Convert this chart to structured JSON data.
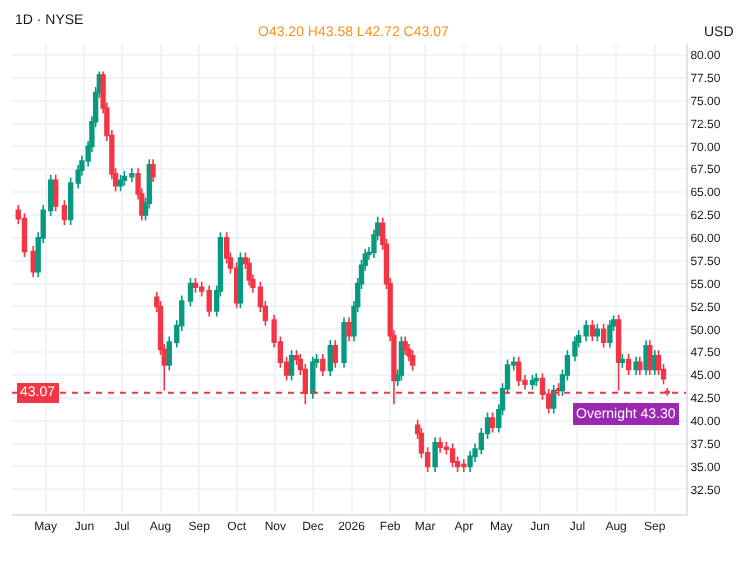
{
  "chart_data": {
    "type": "candlestick",
    "title": "1D · NYSE",
    "ylabel": "USD",
    "annotations": [
      "O43.20 H43.58 L42.72 C43.07",
      {
        "text": "Overnight 43.30",
        "x": "2026-09-11",
        "y": 43.3
      }
    ],
    "colors": [
      "#f23645",
      "#f23645",
      "#f23645",
      "#089981",
      "#089981",
      "#089981",
      "#f23645",
      "#f23645",
      "#089981",
      "#089981",
      "#089981",
      "#089981",
      "#089981",
      "#089981",
      "#089981",
      "#f23645",
      "#f23645",
      "#f23645",
      "#f23645",
      "#089981",
      "#089981",
      "#089981",
      "#f23645",
      "#f23645",
      "#089981",
      "#089981",
      "#f23645",
      "#f23645",
      "#f23645",
      "#f23645",
      "#089981",
      "#089981",
      "#089981",
      "#089981",
      "#f23645",
      "#f23645",
      "#f23645",
      "#089981",
      "#089981",
      "#f23645",
      "#f23645",
      "#f23645",
      "#089981",
      "#f23645",
      "#f23645",
      "#f23645",
      "#f23645",
      "#f23645",
      "#f23645",
      "#f23645",
      "#f23645",
      "#089981",
      "#f23645",
      "#f23645",
      "#f23645",
      "#089981",
      "#089981",
      "#f23645",
      "#089981",
      "#f23645",
      "#089981",
      "#f23645",
      "#089981",
      "#089981",
      "#089981",
      "#089981",
      "#089981",
      "#089981",
      "#089981",
      "#f23645",
      "#f23645",
      "#f23645",
      "#f23645",
      "#089981",
      "#089981",
      "#f23645",
      "#f23645",
      "#f23645",
      "#f23645",
      "#f23645",
      "#f23645",
      "#089981",
      "#f23645",
      "#f23645",
      "#f23645",
      "#f23645",
      "#f23645",
      "#089981",
      "#089981",
      "#089981",
      "#089981",
      "#f23645",
      "#089981",
      "#089981",
      "#089981",
      "#089981",
      "#f23645",
      "#f23645",
      "#089981",
      "#089981",
      "#f23645",
      "#f23645",
      "#089981",
      "#f23645",
      "#089981",
      "#089981",
      "#089981",
      "#089981",
      "#089981",
      "#f23645",
      "#089981",
      "#f23645",
      "#089981",
      "#089981",
      "#f23645",
      "#089981",
      "#f23645",
      "#089981",
      "#f23645",
      "#089981",
      "#f23645",
      "#089981",
      "#f23645",
      "#f23645",
      "#f23645"
    ],
    "x": [
      "2025-04-09",
      "2025-04-14",
      "2025-04-21",
      "2025-04-25",
      "2025-04-29",
      "2025-05-05",
      "2025-05-09",
      "2025-05-16",
      "2025-05-21",
      "2025-05-27",
      "2025-05-30",
      "2025-06-04",
      "2025-06-07",
      "2025-06-10",
      "2025-06-13",
      "2025-06-16",
      "2025-06-19",
      "2025-06-23",
      "2025-06-26",
      "2025-06-30",
      "2025-07-03",
      "2025-07-09",
      "2025-07-14",
      "2025-07-17",
      "2025-07-20",
      "2025-07-23",
      "2025-07-26",
      "2025-07-29",
      "2025-08-01",
      "2025-08-04",
      "2025-08-08",
      "2025-08-14",
      "2025-08-18",
      "2025-08-25",
      "2025-08-29",
      "2025-09-03",
      "2025-09-09",
      "2025-09-15",
      "2025-09-18",
      "2025-09-23",
      "2025-09-26",
      "2025-10-01",
      "2025-10-04",
      "2025-10-08",
      "2025-10-11",
      "2025-10-14",
      "2025-10-20",
      "2025-10-24",
      "2025-10-31",
      "2025-11-05",
      "2025-11-10",
      "2025-11-14",
      "2025-11-18",
      "2025-11-21",
      "2025-11-25",
      "2025-12-01",
      "2025-12-04",
      "2025-12-09",
      "2025-12-15",
      "2025-12-19",
      "2025-12-26",
      "2025-12-30",
      "2026-01-03",
      "2026-01-06",
      "2026-01-09",
      "2026-01-12",
      "2026-01-15",
      "2026-01-19",
      "2026-01-22",
      "2026-01-26",
      "2026-01-29",
      "2026-02-01",
      "2026-02-04",
      "2026-02-07",
      "2026-02-10",
      "2026-02-13",
      "2026-02-16",
      "2026-02-19",
      "2026-02-23",
      "2026-02-26",
      "2026-03-03",
      "2026-03-09",
      "2026-03-13",
      "2026-03-18",
      "2026-03-23",
      "2026-03-27",
      "2026-04-01",
      "2026-04-06",
      "2026-04-10",
      "2026-04-15",
      "2026-04-20",
      "2026-04-24",
      "2026-04-29",
      "2026-05-02",
      "2026-05-06",
      "2026-05-11",
      "2026-05-15",
      "2026-05-20",
      "2026-05-26",
      "2026-05-29",
      "2026-06-03",
      "2026-06-08",
      "2026-06-12",
      "2026-06-16",
      "2026-06-19",
      "2026-06-23",
      "2026-06-29",
      "2026-07-02",
      "2026-07-08",
      "2026-07-13",
      "2026-07-17",
      "2026-07-22",
      "2026-07-27",
      "2026-07-30",
      "2026-08-03",
      "2026-08-06",
      "2026-08-11",
      "2026-08-17",
      "2026-08-20",
      "2026-08-25",
      "2026-08-28",
      "2026-09-01",
      "2026-09-04",
      "2026-09-08",
      "2026-09-11"
    ],
    "ohlc": [
      [
        63,
        63.6,
        61.5,
        62.1
      ],
      [
        62.1,
        62.7,
        57.9,
        58.5
      ],
      [
        58.5,
        59.1,
        55.7,
        56.3
      ],
      [
        56.3,
        60.6,
        55.7,
        60
      ],
      [
        60,
        63.6,
        59.4,
        63
      ],
      [
        63,
        66.9,
        62.4,
        66.3
      ],
      [
        66.3,
        66.9,
        62.9,
        63.5
      ],
      [
        63.5,
        64.1,
        61.4,
        62
      ],
      [
        62,
        66.6,
        61.4,
        66
      ],
      [
        66,
        68,
        65.4,
        67.4
      ],
      [
        67.4,
        69,
        66.8,
        68.4
      ],
      [
        68.4,
        70.6,
        67.8,
        70
      ],
      [
        70,
        73.3,
        69.4,
        72.7
      ],
      [
        72.7,
        76.5,
        72.1,
        75.9
      ],
      [
        75.9,
        78.2,
        75.3,
        77.8
      ],
      [
        77.8,
        78.2,
        73.6,
        74.2
      ],
      [
        74.2,
        74.8,
        70.6,
        71.2
      ],
      [
        71.2,
        71.8,
        66.4,
        67
      ],
      [
        67,
        67.6,
        65.1,
        65.7
      ],
      [
        65.7,
        66.9,
        65.1,
        66.3
      ],
      [
        66.3,
        67.3,
        65.7,
        66.7
      ],
      [
        66.7,
        67.6,
        66.1,
        67
      ],
      [
        67,
        67.6,
        64.2,
        64.8
      ],
      [
        64.8,
        65.4,
        61.9,
        62.5
      ],
      [
        62.5,
        64.4,
        61.9,
        63.8
      ],
      [
        63.8,
        68.6,
        63.2,
        68
      ],
      [
        68,
        68.6,
        66.1,
        66.7
      ],
      [
        53.5,
        54.1,
        51.9,
        52.5
      ],
      [
        52.5,
        53.1,
        47.2,
        47.8
      ],
      [
        47.8,
        48.4,
        43.3,
        46.1
      ],
      [
        46.1,
        49.2,
        45.5,
        48.6
      ],
      [
        48.6,
        51,
        48,
        50.4
      ],
      [
        50.4,
        53.7,
        49.8,
        53.1
      ],
      [
        53.1,
        55.6,
        52.5,
        55
      ],
      [
        55,
        55.6,
        54,
        54.6
      ],
      [
        54.6,
        55.2,
        53.6,
        54.2
      ],
      [
        54.2,
        54.8,
        51.4,
        52
      ],
      [
        52,
        54.8,
        51.4,
        54.2
      ],
      [
        54.2,
        60.6,
        53.6,
        60
      ],
      [
        60,
        60.6,
        57.2,
        57.8
      ],
      [
        57.8,
        58.4,
        56.1,
        56.7
      ],
      [
        56.7,
        57.3,
        52.3,
        52.9
      ],
      [
        52.9,
        58.4,
        52.3,
        57.8
      ],
      [
        57.8,
        58.4,
        56.6,
        57.2
      ],
      [
        57.2,
        57.8,
        54.8,
        55.4
      ],
      [
        55.4,
        56,
        54,
        54.6
      ],
      [
        54.6,
        55.2,
        51.9,
        52.5
      ],
      [
        52.5,
        53.1,
        50.4,
        51
      ],
      [
        51,
        51.6,
        48,
        48.6
      ],
      [
        48.6,
        49.2,
        45.8,
        46.4
      ],
      [
        46.4,
        47,
        44.4,
        45
      ],
      [
        45,
        47.7,
        44.4,
        47.1
      ],
      [
        47.1,
        47.7,
        46.1,
        46.7
      ],
      [
        46.7,
        47.3,
        45,
        45.6
      ],
      [
        45.6,
        46.2,
        41.8,
        43
      ],
      [
        43,
        47,
        42.4,
        46.4
      ],
      [
        46.4,
        47.3,
        45.8,
        46.7
      ],
      [
        46.7,
        47.3,
        44.9,
        45.5
      ],
      [
        45.5,
        48.8,
        44.9,
        48.2
      ],
      [
        48.2,
        48.8,
        45.8,
        46.4
      ],
      [
        46.4,
        51.3,
        45.8,
        50.7
      ],
      [
        50.7,
        51.3,
        48.7,
        49.3
      ],
      [
        49.3,
        53.1,
        48.7,
        52.5
      ],
      [
        52.5,
        55.6,
        51.9,
        55
      ],
      [
        55,
        57.6,
        54.4,
        57
      ],
      [
        57,
        58.8,
        56.4,
        58.2
      ],
      [
        58.2,
        59,
        57.6,
        58.4
      ],
      [
        58.4,
        60.9,
        57.8,
        60.3
      ],
      [
        60.3,
        62.3,
        59.7,
        61.6
      ],
      [
        61.6,
        62.2,
        58.7,
        59.3
      ],
      [
        59.3,
        59.9,
        54.4,
        55
      ],
      [
        55,
        55.6,
        48.7,
        49.3
      ],
      [
        49.3,
        49.9,
        41.8,
        44.4
      ],
      [
        44.4,
        45.6,
        43.8,
        45
      ],
      [
        45,
        49.2,
        44.4,
        48.6
      ],
      [
        48.6,
        49.2,
        47.2,
        47.8
      ],
      [
        47.8,
        48.4,
        46.5,
        47.1
      ],
      [
        47.1,
        47.7,
        45.5,
        46.1
      ],
      [
        39.5,
        40.1,
        38,
        38.6
      ],
      [
        38.6,
        39.2,
        35.9,
        36.5
      ],
      [
        36.5,
        37.1,
        34.4,
        35
      ],
      [
        35,
        38.2,
        34.4,
        37.6
      ],
      [
        37.6,
        38.2,
        36.5,
        37.1
      ],
      [
        37.1,
        37.7,
        36.3,
        36.9
      ],
      [
        36.9,
        37.5,
        34.9,
        35.5
      ],
      [
        35.5,
        36.1,
        34.4,
        35
      ],
      [
        35.2,
        35.8,
        34.4,
        35
      ],
      [
        35,
        36.7,
        34.4,
        36.1
      ],
      [
        36.1,
        37.5,
        35.5,
        36.9
      ],
      [
        36.9,
        39.2,
        36.3,
        38.6
      ],
      [
        38.6,
        40.9,
        38,
        40.3
      ],
      [
        40.3,
        40.9,
        38.7,
        39.3
      ],
      [
        39.3,
        41.8,
        38.7,
        41.2
      ],
      [
        41.2,
        44.1,
        40.6,
        43.5
      ],
      [
        43.5,
        46.7,
        42.9,
        46.1
      ],
      [
        46.1,
        47,
        45.5,
        46.4
      ],
      [
        46.4,
        47,
        43.8,
        44.4
      ],
      [
        44.4,
        45,
        43.4,
        44
      ],
      [
        44,
        45,
        43.4,
        44.4
      ],
      [
        44.4,
        45.2,
        43.8,
        44.6
      ],
      [
        44.6,
        45.2,
        42.3,
        42.9
      ],
      [
        42.9,
        43.5,
        40.8,
        41.4
      ],
      [
        41.4,
        43.9,
        40.8,
        43.3
      ],
      [
        43.5,
        44.1,
        42.7,
        43.3
      ],
      [
        43.3,
        45.6,
        42.7,
        45
      ],
      [
        45,
        47.7,
        44.4,
        47.1
      ],
      [
        47.1,
        49.2,
        46.5,
        48.6
      ],
      [
        48.6,
        49.9,
        48,
        49.3
      ],
      [
        49.3,
        51,
        48.7,
        50.4
      ],
      [
        50.4,
        51,
        48.7,
        49.3
      ],
      [
        49.3,
        50.6,
        48.7,
        50
      ],
      [
        50,
        50.6,
        48,
        48.6
      ],
      [
        48.6,
        51,
        48,
        50.4
      ],
      [
        50.4,
        51.5,
        49.8,
        51
      ],
      [
        51,
        51.6,
        43.3,
        46.4
      ],
      [
        46.4,
        47.3,
        45.8,
        46.7
      ],
      [
        46.7,
        47.3,
        45,
        45.6
      ],
      [
        45.6,
        47,
        45,
        46.4
      ],
      [
        46.4,
        47,
        45,
        45.6
      ],
      [
        45.6,
        48.8,
        45,
        48.2
      ],
      [
        48.2,
        48.8,
        45,
        45.6
      ],
      [
        45.6,
        47.7,
        45,
        47.1
      ],
      [
        47.1,
        47.7,
        45,
        45.6
      ],
      [
        45.6,
        46.2,
        44,
        44.6
      ],
      [
        43.2,
        43.58,
        42.72,
        43.07
      ]
    ],
    "xlim": [
      "2025-04-04",
      "2026-09-26"
    ],
    "xticks": [
      {
        "value": "2025-05-01",
        "label": "May"
      },
      {
        "value": "2025-06-01",
        "label": "Jun"
      },
      {
        "value": "2025-07-01",
        "label": "Jul"
      },
      {
        "value": "2025-08-01",
        "label": "Aug"
      },
      {
        "value": "2025-09-01",
        "label": "Sep"
      },
      {
        "value": "2025-10-01",
        "label": "Oct"
      },
      {
        "value": "2025-11-01",
        "label": "Nov"
      },
      {
        "value": "2025-12-01",
        "label": "Dec"
      },
      {
        "value": "2026-01-01",
        "label": "2026"
      },
      {
        "value": "2026-02-01",
        "label": "Feb"
      },
      {
        "value": "2026-03-01",
        "label": "Mar"
      },
      {
        "value": "2026-04-01",
        "label": "Apr"
      },
      {
        "value": "2026-05-01",
        "label": "May"
      },
      {
        "value": "2026-06-01",
        "label": "Jun"
      },
      {
        "value": "2026-07-01",
        "label": "Jul"
      },
      {
        "value": "2026-08-01",
        "label": "Aug"
      },
      {
        "value": "2026-09-01",
        "label": "Sep"
      }
    ],
    "ylim": [
      29.8,
      81.2
    ],
    "yticks": [
      {
        "value": 32.5,
        "label": "32.50"
      },
      {
        "value": 35,
        "label": "35.00"
      },
      {
        "value": 37.5,
        "label": "37.50"
      },
      {
        "value": 40,
        "label": "40.00"
      },
      {
        "value": 42.5,
        "label": "42.50"
      },
      {
        "value": 45,
        "label": "45.00"
      },
      {
        "value": 47.5,
        "label": "47.50"
      },
      {
        "value": 50,
        "label": "50.00"
      },
      {
        "value": 52.5,
        "label": "52.50"
      },
      {
        "value": 55,
        "label": "55.00"
      },
      {
        "value": 57.5,
        "label": "57.50"
      },
      {
        "value": 60,
        "label": "60.00"
      },
      {
        "value": 62.5,
        "label": "62.50"
      },
      {
        "value": 65,
        "label": "65.00"
      },
      {
        "value": 67.5,
        "label": "67.50"
      },
      {
        "value": 70,
        "label": "70.00"
      },
      {
        "value": 72.5,
        "label": "72.50"
      },
      {
        "value": 75,
        "label": "75.00"
      },
      {
        "value": 77.5,
        "label": "77.50"
      },
      {
        "value": 80,
        "label": "80.00"
      }
    ],
    "ref_lines": [
      {
        "axis": "y",
        "value": 43.07,
        "label": "43.07",
        "color": "#f23645",
        "line_style": "dotted"
      }
    ],
    "grid": true
  }
}
